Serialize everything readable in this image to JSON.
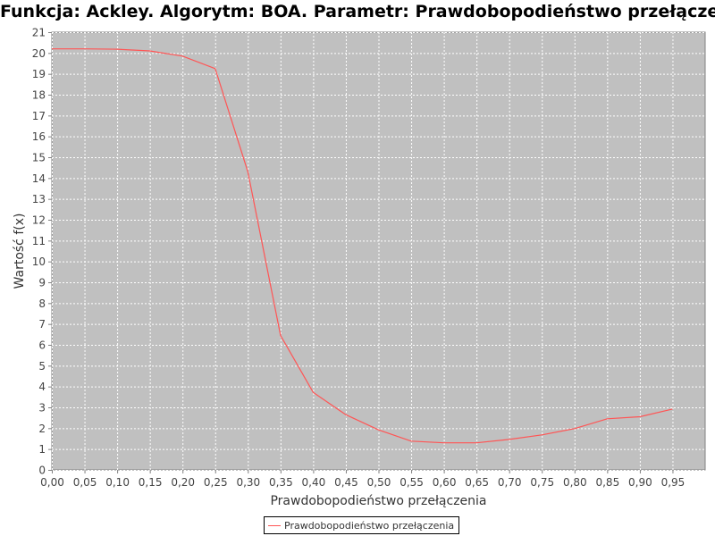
{
  "chart_data": {
    "type": "line",
    "title": "Funkcja: Ackley. Algorytm: BOA. Parametr: Prawdobopodieństwo przełączenia",
    "xlabel": "Prawdobopodieństwo przełączenia",
    "ylabel": "Wartość f(x)",
    "xlim": [
      0,
      1.0
    ],
    "ylim": [
      0,
      21
    ],
    "x_ticks": [
      "0,00",
      "0,05",
      "0,10",
      "0,15",
      "0,20",
      "0,25",
      "0,30",
      "0,35",
      "0,40",
      "0,45",
      "0,50",
      "0,55",
      "0,60",
      "0,65",
      "0,70",
      "0,75",
      "0,80",
      "0,85",
      "0,90",
      "0,95"
    ],
    "y_ticks": [
      "0",
      "1",
      "2",
      "3",
      "4",
      "5",
      "6",
      "7",
      "8",
      "9",
      "10",
      "11",
      "12",
      "13",
      "14",
      "15",
      "16",
      "17",
      "18",
      "19",
      "20",
      "21"
    ],
    "grid": true,
    "legend_position": "bottom",
    "colors": {
      "plot_background": "#c0c0c0",
      "gridline": "#ffffff",
      "series": "#ff5555"
    },
    "series": [
      {
        "name": "Prawdobopodieństwo przełączenia",
        "x": [
          0.0,
          0.05,
          0.1,
          0.15,
          0.2,
          0.25,
          0.3,
          0.35,
          0.4,
          0.45,
          0.5,
          0.55,
          0.6,
          0.65,
          0.7,
          0.75,
          0.8,
          0.85,
          0.9,
          0.95
        ],
        "y": [
          20.2,
          20.2,
          20.18,
          20.1,
          19.85,
          19.25,
          14.3,
          6.45,
          3.72,
          2.65,
          1.92,
          1.38,
          1.3,
          1.3,
          1.46,
          1.68,
          1.98,
          2.45,
          2.55,
          2.92
        ]
      }
    ]
  }
}
